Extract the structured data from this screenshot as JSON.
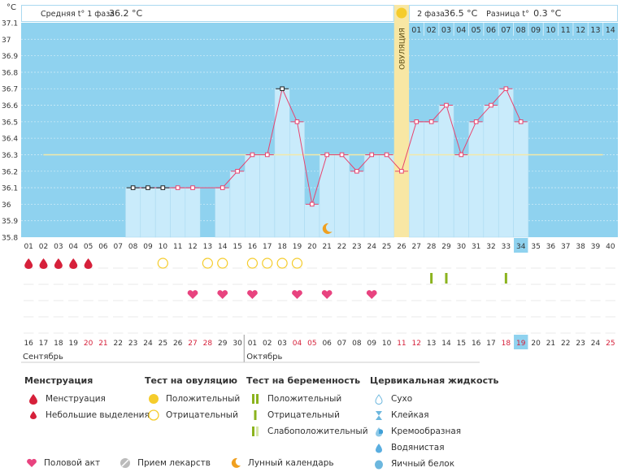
{
  "colors": {
    "plot_bg": "#8fd2ef",
    "bar_fill": "#c9ebfb",
    "line": "#e8436e",
    "coverline": "#f3e9a8",
    "ovulation": "#f8e7a4",
    "header_border": "#a9d9f0",
    "highlight": "#8fd2ef",
    "red": "#d6203a",
    "green": "#8bb31e",
    "pink": "#e8437f",
    "yellow": "#f5cc2b"
  },
  "header": {
    "unit": "°C",
    "phase1_label": "Средняя t° 1 фаза",
    "phase1_value": "36.2 °C",
    "phase2_label": "2 фаза",
    "phase2_value": "36.5 °C",
    "diff_label": "Разница t°",
    "diff_value": "0.3 °C",
    "ovulation_label": "ОВУЛЯЦИЯ"
  },
  "chart_data": {
    "type": "bar",
    "ylim": [
      35.8,
      37.1
    ],
    "y_ticks": [
      "35.8",
      "35.9",
      "36",
      "36.1",
      "36.2",
      "36.3",
      "36.4",
      "36.5",
      "36.6",
      "36.7",
      "36.8",
      "36.9",
      "37",
      "37.1"
    ],
    "coverline": 36.3,
    "ovulation_day": 26,
    "cycle_days": [
      "01",
      "02",
      "03",
      "04",
      "05",
      "06",
      "07",
      "08",
      "09",
      "10",
      "11",
      "12",
      "13",
      "14",
      "15",
      "16",
      "17",
      "18",
      "19",
      "20",
      "21",
      "22",
      "23",
      "24",
      "25",
      "26",
      "27",
      "28",
      "29",
      "30",
      "31",
      "32",
      "33",
      "34",
      "35",
      "36",
      "37",
      "38",
      "39",
      "40"
    ],
    "current_day": "34",
    "values": [
      null,
      null,
      null,
      null,
      null,
      null,
      null,
      36.1,
      36.1,
      36.1,
      36.1,
      36.1,
      null,
      36.1,
      36.2,
      36.3,
      36.3,
      36.7,
      36.5,
      36.0,
      36.3,
      36.3,
      36.2,
      36.3,
      36.3,
      36.2,
      36.5,
      36.5,
      36.6,
      36.3,
      36.5,
      36.6,
      36.7,
      36.5,
      null,
      null,
      null,
      null,
      null,
      null
    ],
    "marked_days": [
      8,
      9,
      10,
      18
    ],
    "phase2_days": [
      "01",
      "02",
      "03",
      "04",
      "05",
      "06",
      "07",
      "08",
      "09",
      "10",
      "11",
      "12",
      "13",
      "14"
    ],
    "dates": [
      "16",
      "17",
      "18",
      "19",
      "20",
      "21",
      "22",
      "23",
      "24",
      "25",
      "26",
      "27",
      "28",
      "29",
      "30",
      "01",
      "02",
      "03",
      "04",
      "05",
      "06",
      "07",
      "08",
      "09",
      "10",
      "11",
      "12",
      "13",
      "14",
      "15",
      "16",
      "17",
      "18",
      "19",
      "20",
      "21",
      "22",
      "23",
      "24",
      "25"
    ],
    "red_date_indices": [
      4,
      5,
      11,
      12,
      18,
      19,
      25,
      26,
      32,
      33,
      39
    ],
    "months": [
      "Сентябрь",
      "Октябрь"
    ],
    "month_start_indices": [
      0,
      15
    ],
    "current_date_index": 33
  },
  "markers": {
    "menstruation_days": [
      1,
      2,
      3,
      4,
      5
    ],
    "ovulation_test_negative_days": [
      10,
      13,
      14,
      16,
      17,
      18,
      19
    ],
    "intercourse_days": [
      12,
      14,
      16,
      19,
      21,
      24
    ],
    "pregnancy_test_negative_days": [
      28,
      29,
      33
    ],
    "lunar_day": 21
  },
  "legend": {
    "menstruation": {
      "title": "Менструация",
      "items": [
        "Менструация",
        "Небольшие выделения"
      ]
    },
    "ovulation_test": {
      "title": "Тест на овуляцию",
      "items": [
        "Положительный",
        "Отрицательный"
      ]
    },
    "pregnancy_test": {
      "title": "Тест на беременность",
      "items": [
        "Положительный",
        "Отрицательный",
        "Слабоположительный"
      ]
    },
    "cervical": {
      "title": "Цервикальная жидкость",
      "items": [
        "Сухо",
        "Клейкая",
        "Кремообразная",
        "Водянистая",
        "Яичный белок"
      ]
    },
    "bottom": [
      "Половой акт",
      "Прием лекарств",
      "Лунный календарь"
    ]
  }
}
